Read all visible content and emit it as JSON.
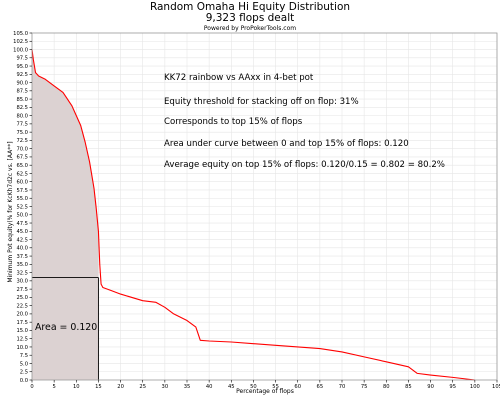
{
  "header": {
    "title": "Random Omaha Hi Equity Distribution",
    "subtitle": "9,323 flops dealt",
    "credit": "Powered by ProPokerTools.com"
  },
  "chart_data": {
    "type": "area",
    "title": "Random Omaha Hi Equity Distribution",
    "subtitle": "9,323 flops dealt",
    "xlabel": "Percentage of flops",
    "ylabel": "Minimum Pot equity(% for KcKh7d2c vs. [AA**]",
    "xlim": [
      0,
      105
    ],
    "ylim": [
      0,
      105
    ],
    "x_ticks": [
      "0",
      "5",
      "10",
      "15",
      "20",
      "25",
      "30",
      "35",
      "40",
      "45",
      "50",
      "55",
      "60",
      "65",
      "70",
      "75",
      "80",
      "85",
      "90",
      "95",
      "100",
      "105"
    ],
    "y_ticks": [
      "0.0",
      "2.5",
      "5.0",
      "7.5",
      "10.0",
      "12.5",
      "15.0",
      "17.5",
      "20.0",
      "22.5",
      "25.0",
      "27.5",
      "30.0",
      "32.5",
      "35.0",
      "37.5",
      "40.0",
      "42.5",
      "45.0",
      "47.5",
      "50.0",
      "52.5",
      "55.0",
      "57.5",
      "60.0",
      "62.5",
      "65.0",
      "67.5",
      "70.0",
      "72.5",
      "75.0",
      "77.5",
      "80.0",
      "82.5",
      "85.0",
      "87.5",
      "90.0",
      "92.5",
      "95.0",
      "97.5",
      "100.0",
      "102.5",
      "105.0"
    ],
    "grid": true,
    "series": [
      {
        "x": [
          0,
          0.3,
          0.8,
          1.5,
          3,
          5,
          7,
          8,
          8.5,
          9,
          10,
          11,
          12,
          13,
          13.5,
          14,
          14.5,
          15,
          15.3,
          15.6,
          16,
          18,
          20,
          25,
          28,
          30,
          32,
          35,
          36,
          37,
          37.5,
          38,
          40,
          45,
          50,
          55,
          60,
          65,
          70,
          75,
          80,
          85,
          87,
          90,
          95,
          100
        ],
        "y": [
          100,
          97,
          93,
          92,
          91,
          89,
          87,
          85,
          84,
          83,
          80,
          77,
          72,
          66,
          62,
          58,
          52,
          45,
          35,
          29,
          28,
          27,
          26,
          24,
          23.5,
          22,
          20,
          18,
          17,
          16,
          14,
          12,
          11.8,
          11.5,
          11,
          10.5,
          10,
          9.5,
          8.5,
          7,
          5.5,
          4,
          2,
          1.5,
          0.8,
          0
        ]
      }
    ],
    "colors": {
      "line": "#ff0000",
      "area_fill": "#dcd2d2",
      "marker_line": "#000000",
      "grid": "#e6e6e6"
    },
    "marker": {
      "x": 15,
      "y": 31
    },
    "annotations": [
      "KK72 rainbow vs AAxx in 4-bet pot",
      "Equity threshold for stacking off on flop: 31%",
      "Corresponds to top 15% of flops",
      "Area under curve between 0 and top 15% of flops: 0.120",
      "Average equity on top 15% of flops: 0.120/0.15 = 0.802 = 80.2%"
    ],
    "area_label": "Area = 0.120"
  }
}
